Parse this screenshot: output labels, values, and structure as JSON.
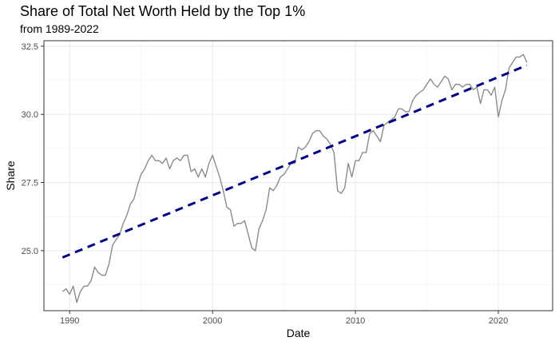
{
  "chart_data": {
    "type": "line",
    "title": "Share of Total Net Worth Held by the Top 1%",
    "subtitle": "from 1989-2022",
    "xlabel": "Date",
    "ylabel": "Share",
    "xlim": [
      1988.2,
      2023.8
    ],
    "ylim": [
      22.8,
      32.7
    ],
    "x_ticks": [
      1990,
      2000,
      2010,
      2020
    ],
    "x_tick_labels": [
      "1990",
      "2000",
      "2010",
      "2020"
    ],
    "y_ticks": [
      25.0,
      27.5,
      30.0,
      32.5
    ],
    "y_tick_labels": [
      "25.0",
      "27.5",
      "30.0",
      "32.5"
    ],
    "grid": true,
    "series": [
      {
        "kind": "observed",
        "color": "#8c8c8c",
        "x": [
          1989.5,
          1989.75,
          1990.0,
          1990.25,
          1990.5,
          1990.75,
          1991.0,
          1991.25,
          1991.5,
          1991.75,
          1992.0,
          1992.25,
          1992.5,
          1992.75,
          1993.0,
          1993.25,
          1993.5,
          1993.75,
          1994.0,
          1994.25,
          1994.5,
          1994.75,
          1995.0,
          1995.25,
          1995.5,
          1995.75,
          1996.0,
          1996.25,
          1996.5,
          1996.75,
          1997.0,
          1997.25,
          1997.5,
          1997.75,
          1998.0,
          1998.25,
          1998.5,
          1998.75,
          1999.0,
          1999.25,
          1999.5,
          1999.75,
          2000.0,
          2000.25,
          2000.5,
          2000.75,
          2001.0,
          2001.25,
          2001.5,
          2001.75,
          2002.0,
          2002.25,
          2002.5,
          2002.75,
          2003.0,
          2003.25,
          2003.5,
          2003.75,
          2004.0,
          2004.25,
          2004.5,
          2004.75,
          2005.0,
          2005.25,
          2005.5,
          2005.75,
          2006.0,
          2006.25,
          2006.5,
          2006.75,
          2007.0,
          2007.25,
          2007.5,
          2007.75,
          2008.0,
          2008.25,
          2008.5,
          2008.75,
          2009.0,
          2009.25,
          2009.5,
          2009.75,
          2010.0,
          2010.25,
          2010.5,
          2010.75,
          2011.0,
          2011.25,
          2011.5,
          2011.75,
          2012.0,
          2012.25,
          2012.5,
          2012.75,
          2013.0,
          2013.25,
          2013.5,
          2013.75,
          2014.0,
          2014.25,
          2014.5,
          2014.75,
          2015.0,
          2015.25,
          2015.5,
          2015.75,
          2016.0,
          2016.25,
          2016.5,
          2016.75,
          2017.0,
          2017.25,
          2017.5,
          2017.75,
          2018.0,
          2018.25,
          2018.5,
          2018.75,
          2019.0,
          2019.25,
          2019.5,
          2019.75,
          2020.0,
          2020.25,
          2020.5,
          2020.75,
          2021.0,
          2021.25,
          2021.5,
          2021.75,
          2022.0
        ],
        "y": [
          23.5,
          23.6,
          23.4,
          23.7,
          23.1,
          23.5,
          23.7,
          23.7,
          23.9,
          24.4,
          24.2,
          24.1,
          24.1,
          24.5,
          25.2,
          25.4,
          25.6,
          26.0,
          26.3,
          26.7,
          26.9,
          27.4,
          27.8,
          28.0,
          28.3,
          28.5,
          28.3,
          28.3,
          28.2,
          28.4,
          28.0,
          28.3,
          28.4,
          28.3,
          28.5,
          28.5,
          27.9,
          28.0,
          27.7,
          28.0,
          27.7,
          28.2,
          28.5,
          28.1,
          27.7,
          27.2,
          26.6,
          26.5,
          25.9,
          26.0,
          26.0,
          26.1,
          25.6,
          25.1,
          25.0,
          25.8,
          26.1,
          26.5,
          27.3,
          27.2,
          27.4,
          27.7,
          27.8,
          28.0,
          28.2,
          28.2,
          28.8,
          28.7,
          28.8,
          29.0,
          29.3,
          29.4,
          29.4,
          29.2,
          29.1,
          28.9,
          28.6,
          27.2,
          27.1,
          27.3,
          28.2,
          27.7,
          28.3,
          28.3,
          28.6,
          28.6,
          29.3,
          29.4,
          29.2,
          29.0,
          29.6,
          29.7,
          29.8,
          29.9,
          30.2,
          30.2,
          30.1,
          30.1,
          30.5,
          30.7,
          30.8,
          30.9,
          31.1,
          31.3,
          31.1,
          31.0,
          31.2,
          31.4,
          31.3,
          30.9,
          31.1,
          31.1,
          31.0,
          31.1,
          31.1,
          30.9,
          31.0,
          30.4,
          30.9,
          30.9,
          30.7,
          31.0,
          29.9,
          30.5,
          30.9,
          31.7,
          31.9,
          32.1,
          32.1,
          32.2,
          31.9
        ]
      },
      {
        "kind": "linear-trend",
        "color": "#000080",
        "dashed": true,
        "x": [
          1989.5,
          2022.0
        ],
        "y": [
          24.75,
          31.8
        ]
      }
    ]
  }
}
